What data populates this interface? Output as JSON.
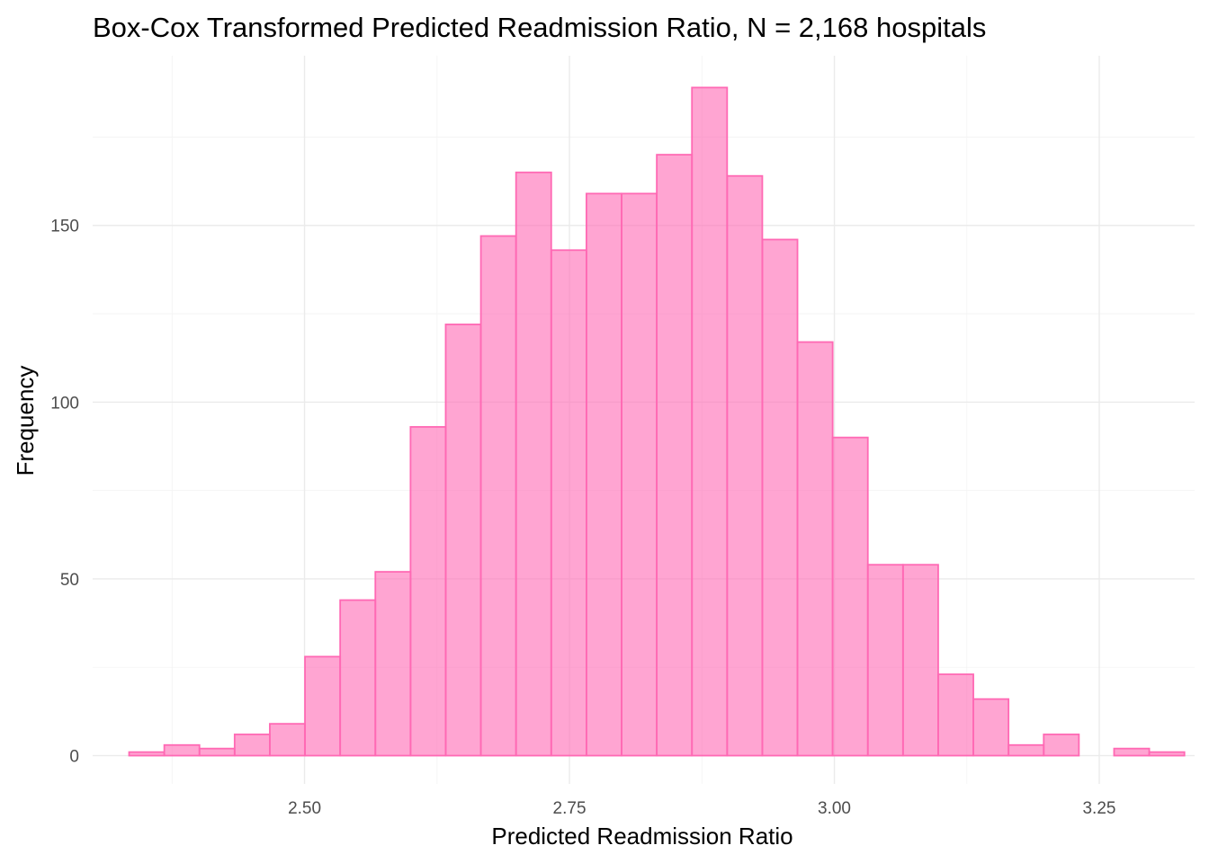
{
  "chart_data": {
    "type": "bar",
    "title": "Box-Cox Transformed Predicted Readmission Ratio, N = 2,168 hospitals",
    "xlabel": "Predicted Readmission Ratio",
    "ylabel": "Frequency",
    "x_ticks": [
      2.5,
      2.75,
      3.0,
      3.25
    ],
    "x_tick_labels": [
      "2.50",
      "2.75",
      "3.00",
      "3.25"
    ],
    "y_ticks": [
      0,
      50,
      100,
      150
    ],
    "y_tick_labels": [
      "0",
      "50",
      "100",
      "150"
    ],
    "xlim": [
      2.3,
      3.34
    ],
    "ylim": [
      -8,
      198
    ],
    "bin_width": 0.0332,
    "bin_starts": [
      2.3344,
      2.3676,
      2.4008,
      2.434,
      2.4672,
      2.5004,
      2.5336,
      2.5668,
      2.6,
      2.6332,
      2.6664,
      2.6996,
      2.7328,
      2.766,
      2.7992,
      2.8324,
      2.8656,
      2.8988,
      2.932,
      2.9652,
      2.9984,
      3.0316,
      3.0648,
      3.098,
      3.1312,
      3.1644,
      3.1976,
      3.2308,
      3.264,
      3.2972
    ],
    "values": [
      1,
      3,
      2,
      6,
      9,
      28,
      44,
      52,
      93,
      122,
      147,
      165,
      143,
      159,
      159,
      170,
      189,
      164,
      146,
      117,
      90,
      54,
      54,
      23,
      16,
      3,
      6,
      0,
      2,
      1
    ],
    "grid": true,
    "legend": "none",
    "bar_color": "#ff69b4"
  }
}
